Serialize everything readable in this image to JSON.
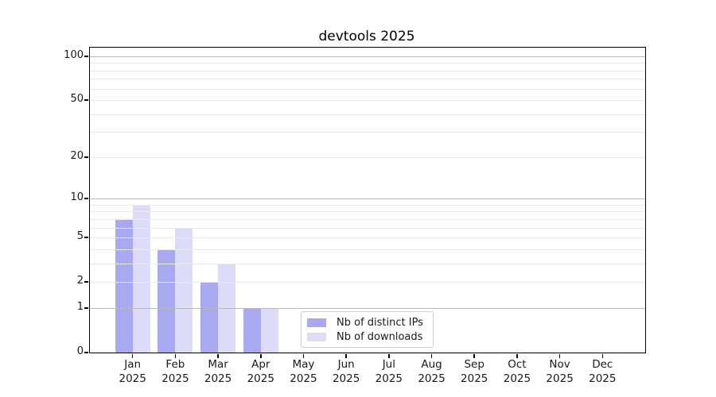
{
  "chart_data": {
    "type": "bar",
    "title": "devtools 2025",
    "categories": [
      "Jan",
      "Feb",
      "Mar",
      "Apr",
      "May",
      "Jun",
      "Jul",
      "Aug",
      "Sep",
      "Oct",
      "Nov",
      "Dec"
    ],
    "x_tick_year": "2025",
    "series": [
      {
        "name": "Nb of distinct IPs",
        "color": "#a9a9f2",
        "values": [
          7,
          4,
          2,
          1,
          0,
          0,
          0,
          0,
          0,
          0,
          0,
          0
        ]
      },
      {
        "name": "Nb of downloads",
        "color": "#dcdcf8",
        "values": [
          9,
          6,
          3,
          1,
          0,
          0,
          0,
          0,
          0,
          0,
          0,
          0
        ]
      }
    ],
    "y_axis": {
      "scale": "log1p",
      "tick_labels": [
        100,
        50,
        20,
        10,
        5,
        2,
        1,
        0
      ],
      "major_gridlines": [
        1,
        10,
        100
      ],
      "minor_gridlines": [
        2,
        3,
        4,
        5,
        6,
        7,
        8,
        9,
        20,
        30,
        40,
        50,
        60,
        70,
        80,
        90
      ],
      "range": [
        0,
        100
      ]
    },
    "legend": {
      "location": "lower center-left inside plot"
    },
    "colors": {
      "major_grid": "#b9b9b9",
      "minor_grid": "#e9e9e9",
      "axis": "#000000",
      "text": "#1a1a1a",
      "legend_border": "#cccccc"
    }
  }
}
